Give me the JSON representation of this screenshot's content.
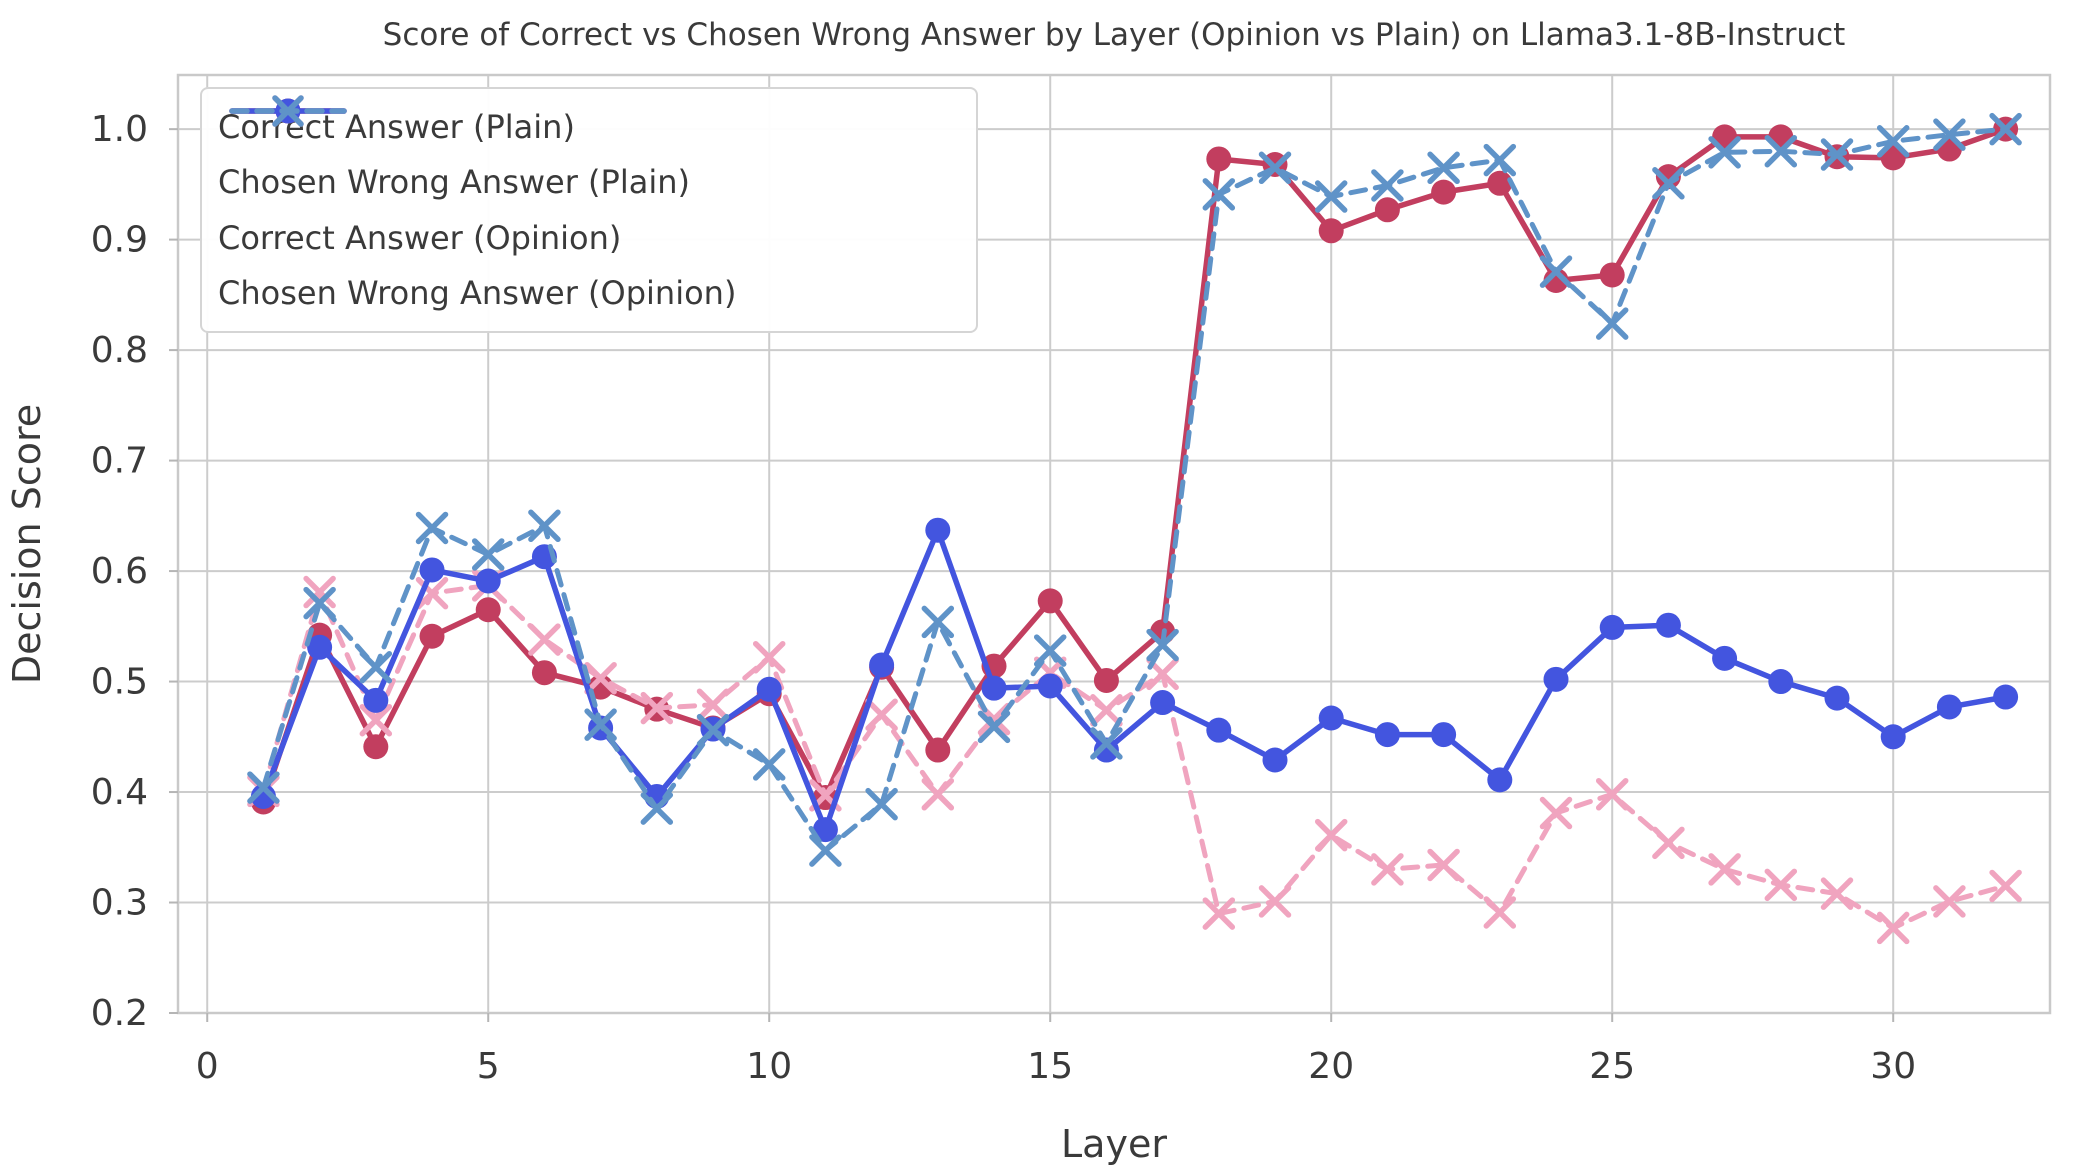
{
  "title": "Score of Correct vs Chosen Wrong Answer by Layer (Opinion vs Plain) on Llama3.1-8B-Instruct",
  "axes": {
    "xlabel": "Layer",
    "ylabel": "Decision Score",
    "x_ticks": [
      {
        "label": "0",
        "value": 0
      },
      {
        "label": "5",
        "value": 5
      },
      {
        "label": "10",
        "value": 10
      },
      {
        "label": "15",
        "value": 15
      },
      {
        "label": "20",
        "value": 20
      },
      {
        "label": "25",
        "value": 25
      },
      {
        "label": "30",
        "value": 30
      }
    ],
    "y_ticks": [
      {
        "label": "1.0",
        "value": 1.0
      },
      {
        "label": "0.9",
        "value": 0.9
      },
      {
        "label": "0.8",
        "value": 0.8
      },
      {
        "label": "0.7",
        "value": 0.7
      },
      {
        "label": "0.6",
        "value": 0.6
      },
      {
        "label": "0.5",
        "value": 0.5
      },
      {
        "label": "0.4",
        "value": 0.4
      },
      {
        "label": "0.3",
        "value": 0.3
      },
      {
        "label": "0.2",
        "value": 0.2
      }
    ],
    "xlim": [
      -0.52,
      32.79
    ],
    "ylim": [
      0.2,
      1.049
    ],
    "grid": true,
    "legend_position": "upper-left"
  },
  "style": {
    "grid_color": "#cccccc",
    "spine_color": "#c9c9c9",
    "tick_color": "#b5b5b5",
    "text_color": "#3a3a3a",
    "background": "#ffffff"
  },
  "chart_data": {
    "type": "line",
    "title": "Score of Correct vs Chosen Wrong Answer by Layer (Opinion vs Plain) on Llama3.1-8B-Instruct",
    "xlabel": "Layer",
    "ylabel": "Decision Score",
    "x": [
      1,
      2,
      3,
      4,
      5,
      6,
      7,
      8,
      9,
      10,
      11,
      12,
      13,
      14,
      15,
      16,
      17,
      18,
      19,
      20,
      21,
      22,
      23,
      24,
      25,
      26,
      27,
      28,
      29,
      30,
      31,
      32
    ],
    "series": [
      {
        "name": "Correct Answer (Plain)",
        "key": "correct-plain",
        "color": "#c23e5f",
        "dashed": false,
        "marker": "circle",
        "values": [
          0.391,
          0.542,
          0.441,
          0.541,
          0.565,
          0.508,
          0.495,
          0.475,
          0.458,
          0.489,
          0.395,
          0.513,
          0.438,
          0.514,
          0.573,
          0.501,
          0.545,
          0.973,
          0.968,
          0.908,
          0.927,
          0.943,
          0.951,
          0.863,
          0.868,
          0.957,
          0.993,
          0.993,
          0.975,
          0.974,
          0.982,
          1.0
        ]
      },
      {
        "name": "Chosen Wrong Answer (Plain)",
        "key": "wrong-plain",
        "color": "#f0a4bf",
        "dashed": true,
        "marker": "x",
        "values": [
          0.401,
          0.581,
          0.465,
          0.58,
          0.587,
          0.538,
          0.503,
          0.476,
          0.479,
          0.522,
          0.397,
          0.47,
          0.398,
          0.466,
          0.508,
          0.474,
          0.507,
          0.29,
          0.301,
          0.361,
          0.33,
          0.334,
          0.291,
          0.381,
          0.398,
          0.354,
          0.33,
          0.316,
          0.308,
          0.277,
          0.301,
          0.315
        ]
      },
      {
        "name": "Correct Answer (Opinion)",
        "key": "correct-opinion",
        "color": "#4355df",
        "dashed": false,
        "marker": "circle",
        "values": [
          0.396,
          0.531,
          0.483,
          0.601,
          0.591,
          0.613,
          0.458,
          0.396,
          0.457,
          0.493,
          0.366,
          0.515,
          0.637,
          0.494,
          0.496,
          0.438,
          0.481,
          0.456,
          0.429,
          0.467,
          0.452,
          0.452,
          0.411,
          0.502,
          0.549,
          0.551,
          0.521,
          0.5,
          0.485,
          0.45,
          0.477,
          0.486
        ]
      },
      {
        "name": "Chosen Wrong Answer (Opinion)",
        "key": "wrong-opinion",
        "color": "#5f93c8",
        "dashed": true,
        "marker": "x",
        "values": [
          0.404,
          0.571,
          0.513,
          0.639,
          0.615,
          0.641,
          0.461,
          0.385,
          0.456,
          0.425,
          0.347,
          0.389,
          0.554,
          0.459,
          0.528,
          0.444,
          0.533,
          0.941,
          0.965,
          0.939,
          0.949,
          0.965,
          0.972,
          0.871,
          0.824,
          0.951,
          0.979,
          0.98,
          0.977,
          0.989,
          0.995,
          1.0
        ]
      }
    ]
  }
}
